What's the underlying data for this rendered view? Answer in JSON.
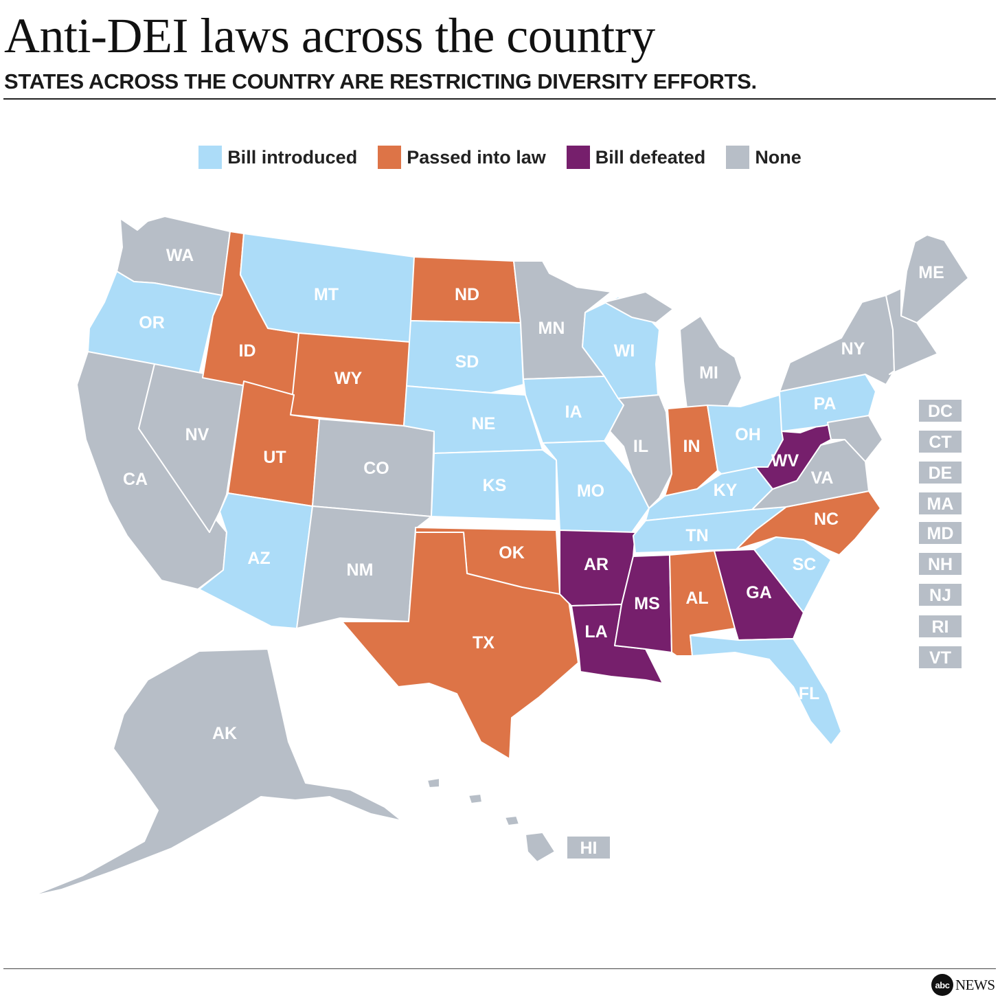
{
  "title": "Anti-DEI laws across the country",
  "subtitle": "STATES ACROSS THE COUNTRY ARE RESTRICTING DIVERSITY EFFORTS.",
  "colors": {
    "introduced": "#acdcf8",
    "passed": "#dd7447",
    "defeated": "#761f6c",
    "none": "#b7bec7"
  },
  "legend": [
    {
      "key": "introduced",
      "label": "Bill introduced"
    },
    {
      "key": "passed",
      "label": "Passed into law"
    },
    {
      "key": "defeated",
      "label": "Bill defeated"
    },
    {
      "key": "none",
      "label": "None"
    }
  ],
  "states": {
    "WA": "none",
    "OR": "introduced",
    "CA": "none",
    "NV": "none",
    "ID": "passed",
    "MT": "introduced",
    "WY": "passed",
    "UT": "passed",
    "AZ": "introduced",
    "CO": "none",
    "NM": "none",
    "ND": "passed",
    "SD": "introduced",
    "NE": "introduced",
    "KS": "introduced",
    "OK": "passed",
    "TX": "passed",
    "MN": "none",
    "IA": "introduced",
    "MO": "introduced",
    "AR": "defeated",
    "LA": "defeated",
    "WI": "introduced",
    "IL": "none",
    "MI": "none",
    "IN": "passed",
    "OH": "introduced",
    "KY": "introduced",
    "TN": "introduced",
    "MS": "defeated",
    "AL": "passed",
    "GA": "defeated",
    "FL": "introduced",
    "SC": "introduced",
    "NC": "passed",
    "VA": "none",
    "WV": "defeated",
    "PA": "introduced",
    "NY": "none",
    "ME": "none",
    "AK": "none",
    "HI": "none",
    "DC": "none",
    "CT": "none",
    "DE": "none",
    "MA": "none",
    "MD": "none",
    "NH": "none",
    "NJ": "none",
    "RI": "none",
    "VT": "none"
  },
  "small_states": [
    "DC",
    "CT",
    "DE",
    "MA",
    "MD",
    "NH",
    "NJ",
    "RI",
    "VT"
  ],
  "branding": {
    "logo_mark": "abc",
    "logo_text": "NEWS"
  }
}
